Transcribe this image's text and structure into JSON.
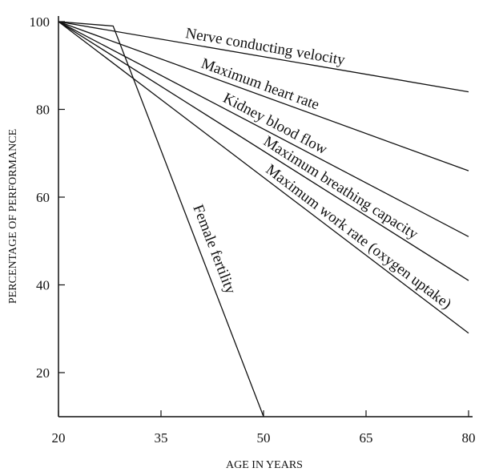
{
  "chart_data": {
    "type": "line",
    "title": "",
    "xlabel": "AGE IN YEARS",
    "ylabel": "PERCENTAGE OF PERFORMANCE",
    "xlim": [
      20,
      80
    ],
    "ylim": [
      10,
      100
    ],
    "xticks": [
      20,
      35,
      50,
      65,
      80
    ],
    "yticks": [
      20,
      40,
      60,
      80,
      100
    ],
    "grid": false,
    "series": [
      {
        "name": "Nerve conducting velocity",
        "x": [
          20,
          80
        ],
        "y": [
          100,
          84
        ]
      },
      {
        "name": "Maximum heart rate",
        "x": [
          20,
          80
        ],
        "y": [
          100,
          66
        ]
      },
      {
        "name": "Kidney blood flow",
        "x": [
          20,
          80
        ],
        "y": [
          100,
          51
        ]
      },
      {
        "name": "Maximum breathing capacity",
        "x": [
          20,
          80
        ],
        "y": [
          100,
          41
        ]
      },
      {
        "name": "Maximum work rate (oxygen uptake)",
        "x": [
          20,
          80
        ],
        "y": [
          100,
          29
        ]
      },
      {
        "name": "Female fertility",
        "x": [
          20,
          28,
          50
        ],
        "y": [
          100,
          99,
          10
        ]
      }
    ],
    "colors": {
      "line": "#111111",
      "background": "#ffffff"
    }
  }
}
